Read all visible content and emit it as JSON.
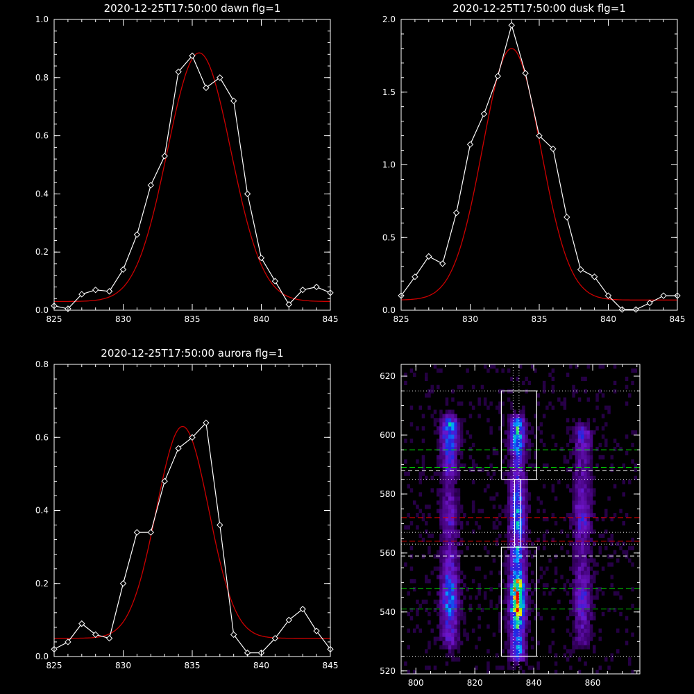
{
  "colors": {
    "background": "#000000",
    "axes": "#ffffff",
    "fit": "#cc0000",
    "data": "#ffffff"
  },
  "chart_data": [
    {
      "type": "line",
      "title": "2020-12-25T17:50:00 dawn flg=1",
      "xlim": [
        825,
        845
      ],
      "ylim": [
        0,
        1.0
      ],
      "xticks": [
        "825",
        "830",
        "835",
        "840",
        "845"
      ],
      "yticks": [
        "0.0",
        "0.2",
        "0.4",
        "0.6",
        "0.8",
        "1.0"
      ],
      "xtick_values": [
        825,
        830,
        835,
        840,
        845
      ],
      "ytick_values": [
        0,
        0.2,
        0.4,
        0.6,
        0.8,
        1.0
      ],
      "observed": {
        "x": [
          825,
          826,
          827,
          828,
          829,
          830,
          831,
          832,
          833,
          834,
          835,
          836,
          837,
          838,
          839,
          840,
          841,
          842,
          843,
          844,
          845
        ],
        "y": [
          0.015,
          0.005,
          0.055,
          0.07,
          0.065,
          0.14,
          0.26,
          0.43,
          0.53,
          0.82,
          0.875,
          0.765,
          0.8,
          0.72,
          0.4,
          0.18,
          0.1,
          0.02,
          0.07,
          0.08,
          0.06
        ]
      },
      "fit": {
        "model": "gaussian",
        "amplitude": 0.855,
        "center": 835.5,
        "sigma": 2.3,
        "offset": 0.03
      }
    },
    {
      "type": "line",
      "title": "2020-12-25T17:50:00 dusk flg=1",
      "xlim": [
        825,
        845
      ],
      "ylim": [
        0,
        2.0
      ],
      "xticks": [
        "825",
        "830",
        "835",
        "840",
        "845"
      ],
      "yticks": [
        "0.0",
        "0.5",
        "1.0",
        "1.5",
        "2.0"
      ],
      "xtick_values": [
        825,
        830,
        835,
        840,
        845
      ],
      "ytick_values": [
        0,
        0.5,
        1.0,
        1.5,
        2.0
      ],
      "observed": {
        "x": [
          825,
          826,
          827,
          828,
          829,
          830,
          831,
          832,
          833,
          834,
          835,
          836,
          837,
          838,
          839,
          840,
          841,
          842,
          843,
          844,
          845
        ],
        "y": [
          0.1,
          0.23,
          0.37,
          0.32,
          0.67,
          1.14,
          1.35,
          1.61,
          1.96,
          1.63,
          1.2,
          1.11,
          0.64,
          0.28,
          0.23,
          0.1,
          0.005,
          0.005,
          0.05,
          0.1,
          0.1
        ]
      },
      "fit": {
        "model": "gaussian",
        "amplitude": 1.73,
        "center": 833.0,
        "sigma": 2.1,
        "offset": 0.07
      }
    },
    {
      "type": "line",
      "title": "2020-12-25T17:50:00 aurora flg=1",
      "xlim": [
        825,
        845
      ],
      "ylim": [
        0,
        0.8
      ],
      "xticks": [
        "825",
        "830",
        "835",
        "840",
        "845"
      ],
      "yticks": [
        "0.0",
        "0.2",
        "0.4",
        "0.6",
        "0.8"
      ],
      "xtick_values": [
        825,
        830,
        835,
        840,
        845
      ],
      "ytick_values": [
        0,
        0.2,
        0.4,
        0.6,
        0.8
      ],
      "observed": {
        "x": [
          825,
          826,
          827,
          828,
          829,
          830,
          831,
          832,
          833,
          834,
          835,
          836,
          837,
          838,
          839,
          840,
          841,
          842,
          843,
          844,
          845
        ],
        "y": [
          0.02,
          0.04,
          0.09,
          0.06,
          0.05,
          0.2,
          0.34,
          0.34,
          0.48,
          0.57,
          0.6,
          0.64,
          0.36,
          0.06,
          0.01,
          0.01,
          0.05,
          0.1,
          0.13,
          0.07,
          0.02
        ]
      },
      "fit": {
        "model": "gaussian",
        "amplitude": 0.58,
        "center": 834.3,
        "sigma": 1.9,
        "offset": 0.05
      }
    },
    {
      "type": "heatmap",
      "title": "",
      "xlim": [
        795,
        876
      ],
      "ylim": [
        519,
        624
      ],
      "xticks": [
        "800",
        "820",
        "840",
        "860"
      ],
      "yticks": [
        "520",
        "540",
        "560",
        "580",
        "600",
        "620"
      ],
      "xtick_values": [
        800,
        820,
        840,
        860
      ],
      "ytick_values": [
        520,
        540,
        560,
        580,
        600,
        620
      ],
      "colormap": "rainbow",
      "emission_columns": [
        {
          "x": 811,
          "y_low": 530,
          "y_high": 603,
          "peak": 0.55
        },
        {
          "x": 834,
          "y_low": 526,
          "y_high": 603,
          "peak": 1.0
        },
        {
          "x": 856,
          "y_low": 530,
          "y_high": 600,
          "peak": 0.35
        }
      ],
      "boxes": [
        {
          "x0": 829,
          "x1": 841,
          "y0": 585,
          "y1": 615
        },
        {
          "x0": 829,
          "x1": 841,
          "y0": 525,
          "y1": 562
        }
      ],
      "white_dotted_h": [
        615,
        585,
        567,
        563,
        525
      ],
      "white_dotted_v": [
        833,
        835
      ],
      "white_dashed_h": [
        588,
        559
      ],
      "green_dashed_h": [
        595,
        589,
        548,
        541
      ],
      "red_dashed_h": [
        572,
        564
      ]
    }
  ]
}
